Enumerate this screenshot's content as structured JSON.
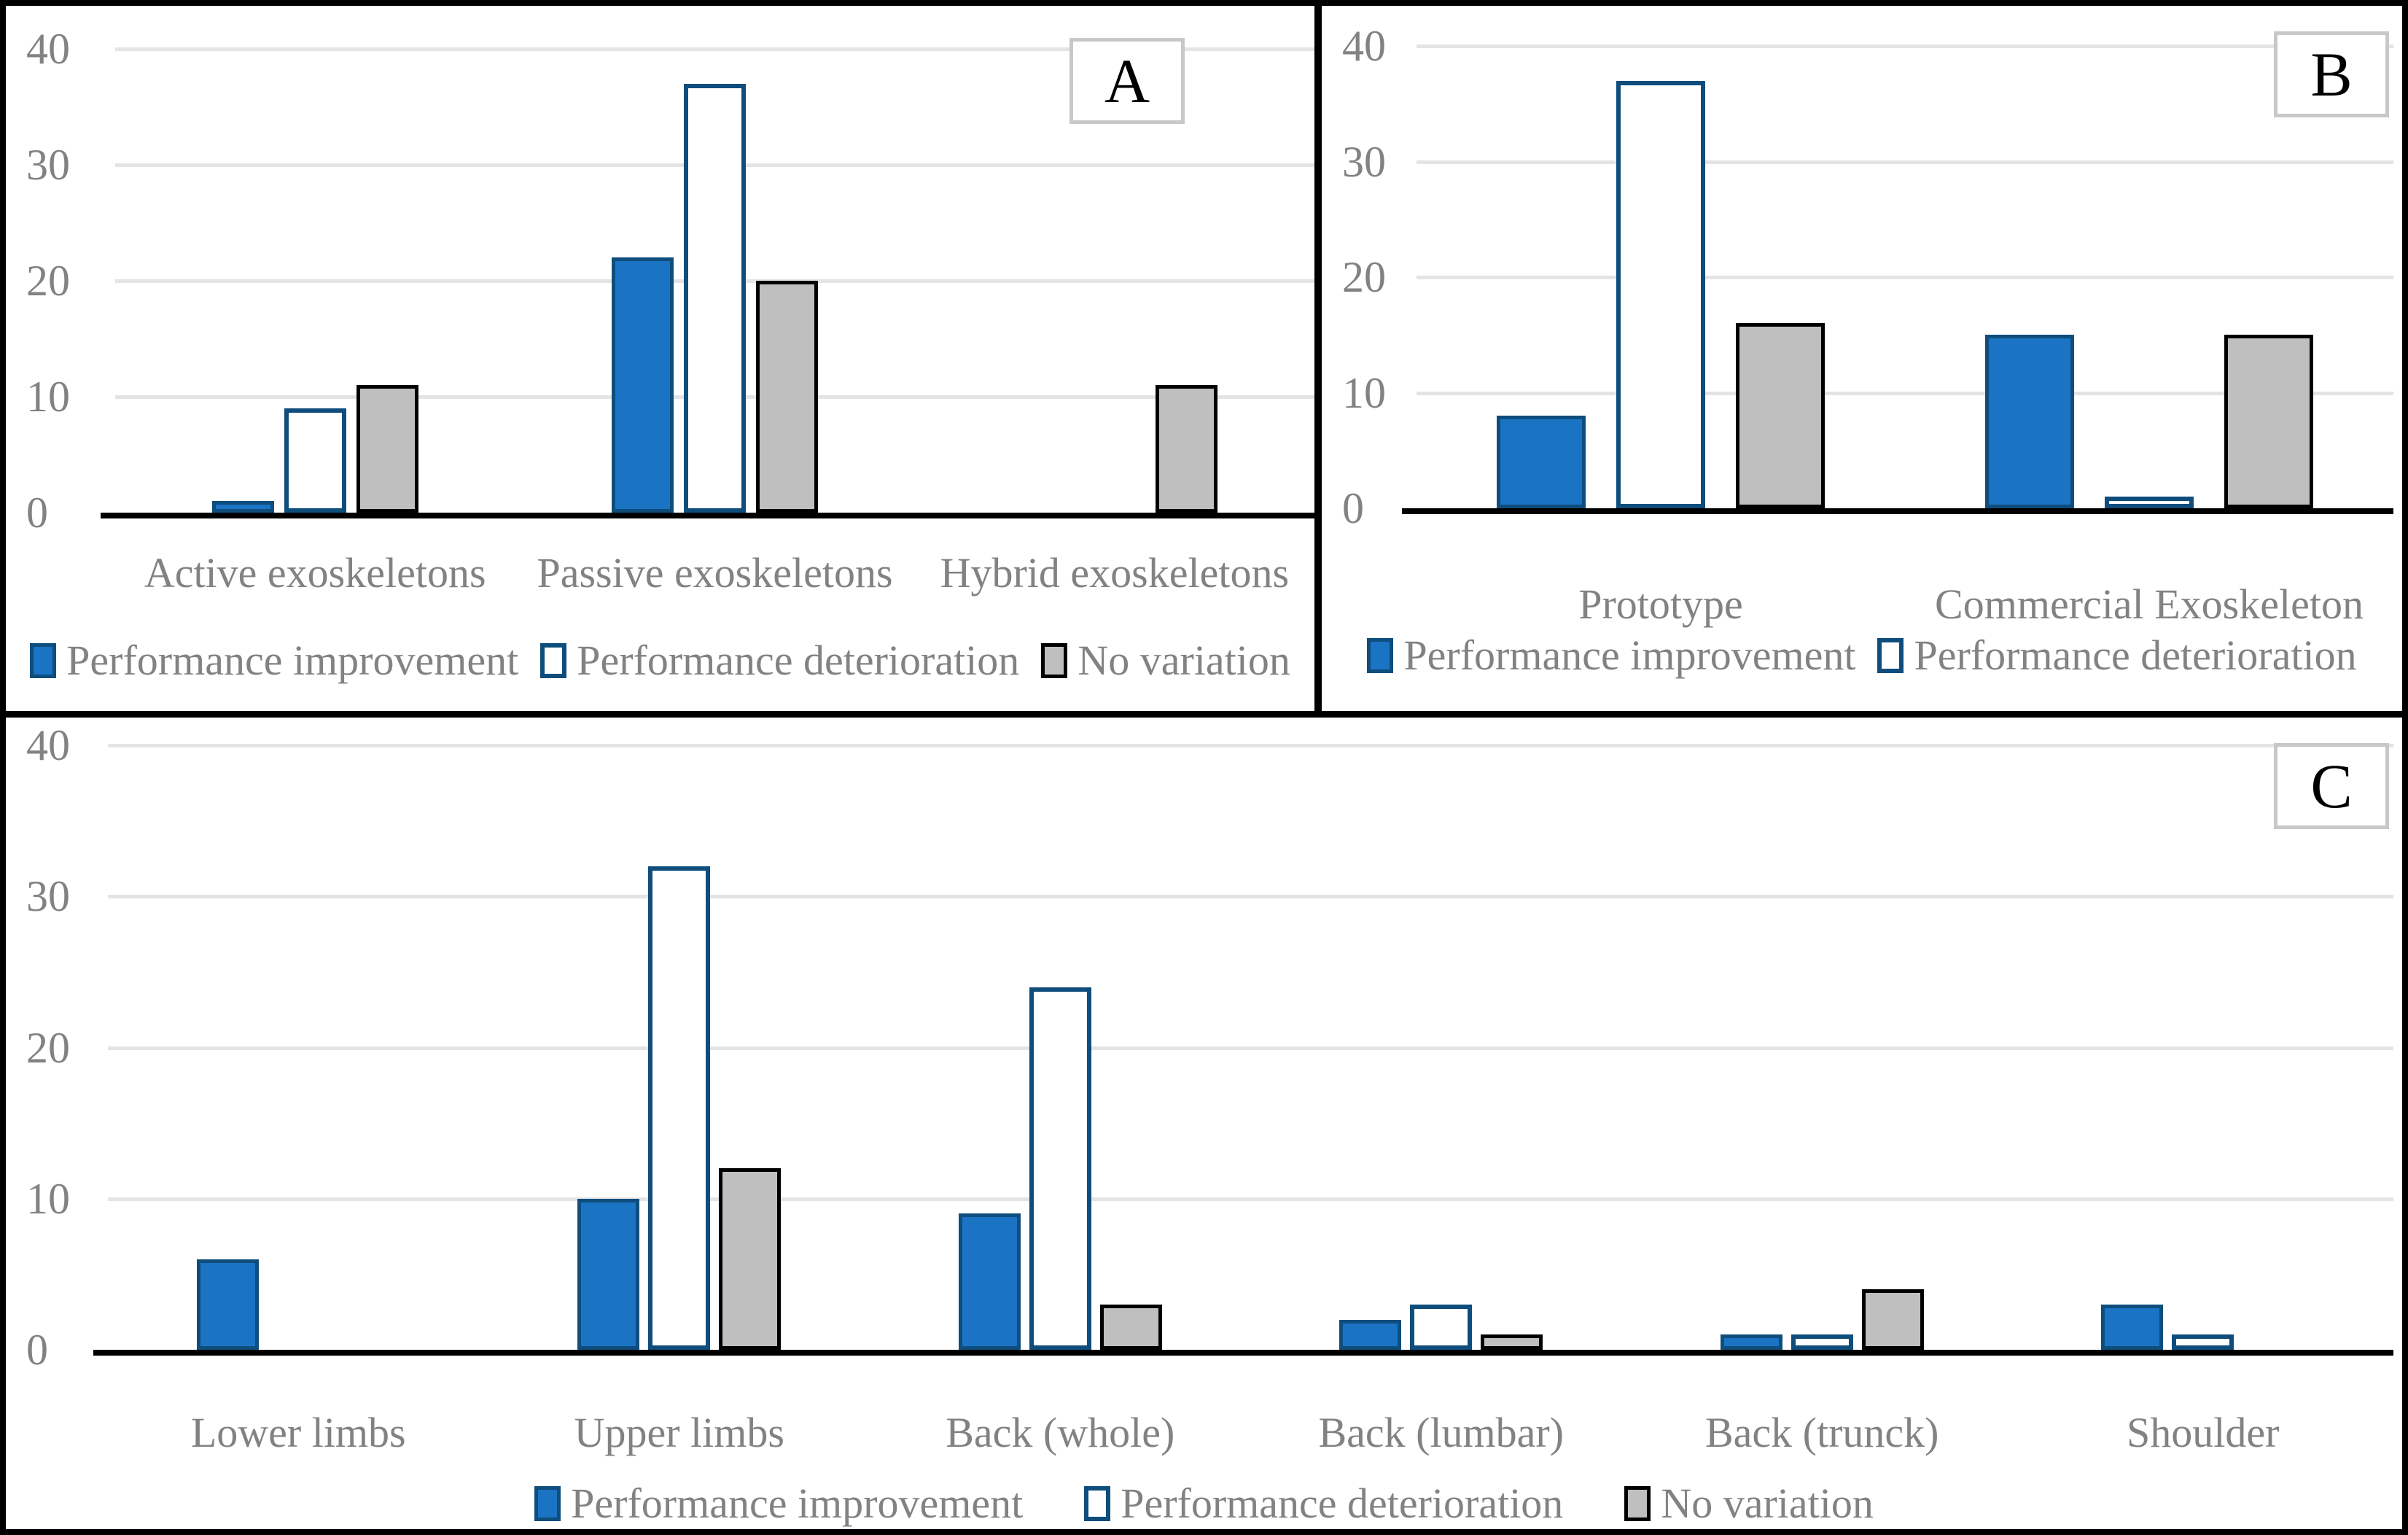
{
  "colors": {
    "improvement_fill": "#1B73C4",
    "improvement_border": "#0E4D7C",
    "deterioration_fill": "#FFFFFF",
    "deterioration_border": "#0E4D7C",
    "no_variation_fill": "#BFBFBF",
    "no_variation_border": "#000000",
    "gridline": "#E4E4E4",
    "axis_line": "#000000",
    "text": "#828282",
    "panel_letter": "#000000",
    "panel_box_border": "#C8C8C8",
    "figure_border": "#000000"
  },
  "chart_data": [
    {
      "panel_label": "A",
      "type": "bar",
      "categories": [
        "Active exoskeletons",
        "Passive exoskeletons",
        "Hybrid exoskeletons"
      ],
      "series": [
        {
          "name": "Performance improvement",
          "key": "improvement",
          "values": [
            1,
            22,
            0
          ]
        },
        {
          "name": "Performance deterioration",
          "key": "deterioration",
          "values": [
            9,
            37,
            0
          ]
        },
        {
          "name": "No variation",
          "key": "no_variation",
          "values": [
            11,
            20,
            11
          ]
        }
      ],
      "ylim": [
        0,
        40
      ],
      "yticks": [
        0,
        10,
        20,
        30,
        40
      ],
      "grid": true,
      "legend_position": "bottom",
      "legend": [
        {
          "label": "Performance improvement",
          "key": "improvement"
        },
        {
          "label": "Performance deterioration",
          "key": "deterioration"
        },
        {
          "label": "No variation",
          "key": "no_variation"
        }
      ]
    },
    {
      "panel_label": "B",
      "type": "bar",
      "categories": [
        "Prototype",
        "Commercial Exoskeleton"
      ],
      "series": [
        {
          "name": "Performance improvement",
          "key": "improvement",
          "values": [
            8,
            15
          ]
        },
        {
          "name": "Performance deterioration",
          "key": "deterioration",
          "values": [
            37,
            1
          ]
        },
        {
          "name": "No variation",
          "key": "no_variation",
          "values": [
            16,
            15
          ]
        }
      ],
      "ylim": [
        0,
        40
      ],
      "yticks": [
        0,
        10,
        20,
        30,
        40
      ],
      "grid": true,
      "legend_position": "bottom",
      "legend": [
        {
          "label": "Performance improvement",
          "key": "improvement"
        },
        {
          "label": "Performance deterioration",
          "key": "deterioration"
        }
      ]
    },
    {
      "panel_label": "C",
      "type": "bar",
      "categories": [
        "Lower limbs",
        "Upper limbs",
        "Back (whole)",
        "Back (lumbar)",
        "Back (trunck)",
        "Shoulder"
      ],
      "series": [
        {
          "name": "Performance improvement",
          "key": "improvement",
          "values": [
            6,
            10,
            9,
            2,
            1,
            3
          ]
        },
        {
          "name": "Performance deterioration",
          "key": "deterioration",
          "values": [
            0,
            32,
            24,
            3,
            1,
            1
          ]
        },
        {
          "name": "No variation",
          "key": "no_variation",
          "values": [
            0,
            12,
            3,
            1,
            4,
            0
          ]
        }
      ],
      "ylim": [
        0,
        40
      ],
      "yticks": [
        0,
        10,
        20,
        30,
        40
      ],
      "grid": true,
      "legend_position": "bottom",
      "legend": [
        {
          "label": "Performance improvement",
          "key": "improvement"
        },
        {
          "label": "Performance deterioration",
          "key": "deterioration"
        },
        {
          "label": "No variation",
          "key": "no_variation"
        }
      ]
    }
  ]
}
